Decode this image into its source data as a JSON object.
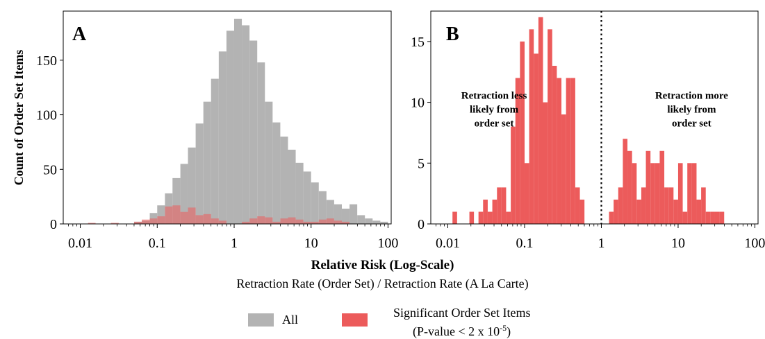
{
  "chart_data": [
    {
      "panel": "A",
      "type": "histogram",
      "ylabel": "Count of Order Set Items",
      "x_scale": "log",
      "xlim": [
        0.006,
        110
      ],
      "ylim": [
        0,
        195
      ],
      "x_ticks": [
        0.01,
        0.1,
        1,
        10,
        100
      ],
      "x_tick_labels": [
        "0.01",
        "0.1",
        "1",
        "10",
        "100"
      ],
      "y_ticks": [
        0,
        50,
        100,
        150
      ],
      "y_tick_labels": [
        "0",
        "50",
        "100",
        "150"
      ],
      "series": [
        {
          "name": "All",
          "color": "#b3b3b3",
          "bins": [
            [
              0.05,
              0.063,
              2
            ],
            [
              0.063,
              0.08,
              3
            ],
            [
              0.08,
              0.1,
              10
            ],
            [
              0.1,
              0.126,
              17
            ],
            [
              0.126,
              0.158,
              28
            ],
            [
              0.158,
              0.2,
              42
            ],
            [
              0.2,
              0.251,
              55
            ],
            [
              0.251,
              0.316,
              70
            ],
            [
              0.316,
              0.398,
              92
            ],
            [
              0.398,
              0.501,
              112
            ],
            [
              0.501,
              0.631,
              133
            ],
            [
              0.631,
              0.794,
              158
            ],
            [
              0.794,
              1.0,
              177
            ],
            [
              1.0,
              1.259,
              188
            ],
            [
              1.259,
              1.585,
              182
            ],
            [
              1.585,
              1.995,
              168
            ],
            [
              1.995,
              2.512,
              148
            ],
            [
              2.512,
              3.162,
              112
            ],
            [
              3.162,
              3.981,
              93
            ],
            [
              3.981,
              5.012,
              80
            ],
            [
              5.012,
              6.31,
              68
            ],
            [
              6.31,
              7.943,
              56
            ],
            [
              7.943,
              10.0,
              48
            ],
            [
              10.0,
              12.59,
              38
            ],
            [
              12.59,
              15.85,
              30
            ],
            [
              15.85,
              19.95,
              22
            ],
            [
              19.95,
              25.12,
              18
            ],
            [
              25.12,
              31.62,
              14
            ],
            [
              31.62,
              39.81,
              18
            ],
            [
              39.81,
              50.12,
              8
            ],
            [
              50.12,
              63.1,
              5
            ],
            [
              63.1,
              79.43,
              3
            ],
            [
              79.43,
              100.0,
              2
            ]
          ]
        },
        {
          "name": "Significant Order Set Items",
          "color": "#ec5b5b",
          "bins": [
            [
              0.0126,
              0.0158,
              1
            ],
            [
              0.025,
              0.0316,
              1
            ],
            [
              0.05,
              0.063,
              2
            ],
            [
              0.063,
              0.08,
              4
            ],
            [
              0.08,
              0.1,
              5
            ],
            [
              0.1,
              0.126,
              7
            ],
            [
              0.126,
              0.158,
              16
            ],
            [
              0.158,
              0.2,
              17
            ],
            [
              0.2,
              0.251,
              11
            ],
            [
              0.251,
              0.316,
              15
            ],
            [
              0.316,
              0.398,
              8
            ],
            [
              0.398,
              0.501,
              9
            ],
            [
              0.501,
              0.631,
              5
            ],
            [
              0.631,
              0.794,
              3
            ],
            [
              1.259,
              1.585,
              2
            ],
            [
              1.585,
              1.995,
              5
            ],
            [
              1.995,
              2.512,
              7
            ],
            [
              2.512,
              3.162,
              6
            ],
            [
              3.162,
              3.981,
              2
            ],
            [
              3.981,
              5.012,
              5
            ],
            [
              5.012,
              6.31,
              6
            ],
            [
              6.31,
              7.943,
              4
            ],
            [
              7.943,
              10.0,
              2
            ],
            [
              10.0,
              12.59,
              2
            ],
            [
              12.59,
              15.85,
              4
            ],
            [
              15.85,
              19.95,
              5
            ],
            [
              19.95,
              25.12,
              3
            ],
            [
              25.12,
              31.62,
              2
            ]
          ]
        }
      ]
    },
    {
      "panel": "B",
      "type": "histogram",
      "x_scale": "log",
      "xlim": [
        0.006,
        110
      ],
      "ylim": [
        0,
        17.5
      ],
      "x_ticks": [
        0.01,
        0.1,
        1,
        10,
        100
      ],
      "x_tick_labels": [
        "0.01",
        "0.1",
        "1",
        "10",
        "100"
      ],
      "y_ticks": [
        0,
        5,
        10,
        15
      ],
      "y_tick_labels": [
        "0",
        "5",
        "10",
        "15"
      ],
      "reference_line": {
        "x": 1,
        "style": "dotted"
      },
      "annotations": [
        {
          "text_lines": [
            "Retraction less",
            "likely from",
            "order set"
          ],
          "anchor_x": 0.04,
          "anchor_y": 10.3
        },
        {
          "text_lines": [
            "Retraction more",
            "likely from",
            "order set"
          ],
          "anchor_x": 15,
          "anchor_y": 10.3
        }
      ],
      "series": [
        {
          "name": "Significant Order Set Items",
          "color": "#ec5b5b",
          "bins": [
            [
              0.0115,
              0.0132,
              1
            ],
            [
              0.0191,
              0.0219,
              1
            ],
            [
              0.0251,
              0.0288,
              1
            ],
            [
              0.0288,
              0.0331,
              2
            ],
            [
              0.0331,
              0.038,
              1
            ],
            [
              0.038,
              0.0437,
              2
            ],
            [
              0.0437,
              0.0501,
              3
            ],
            [
              0.0501,
              0.0575,
              3
            ],
            [
              0.0575,
              0.0661,
              1
            ],
            [
              0.0661,
              0.0759,
              8
            ],
            [
              0.0759,
              0.0871,
              12
            ],
            [
              0.0871,
              0.1,
              15
            ],
            [
              0.1,
              0.1148,
              5
            ],
            [
              0.1148,
              0.1318,
              16
            ],
            [
              0.1318,
              0.1514,
              14
            ],
            [
              0.1514,
              0.1738,
              17
            ],
            [
              0.1738,
              0.1995,
              10
            ],
            [
              0.1995,
              0.2291,
              16
            ],
            [
              0.2291,
              0.263,
              13
            ],
            [
              0.263,
              0.302,
              12
            ],
            [
              0.302,
              0.3467,
              9
            ],
            [
              0.3467,
              0.3981,
              12
            ],
            [
              0.3981,
              0.4571,
              12
            ],
            [
              0.4571,
              0.5248,
              3
            ],
            [
              0.5248,
              0.6026,
              2
            ],
            [
              1.2589,
              1.4454,
              1
            ],
            [
              1.4454,
              1.6596,
              2
            ],
            [
              1.6596,
              1.9055,
              3
            ],
            [
              1.9055,
              2.1878,
              7
            ],
            [
              2.1878,
              2.5119,
              6
            ],
            [
              2.5119,
              2.884,
              5
            ],
            [
              2.884,
              3.3113,
              2
            ],
            [
              3.3113,
              3.8019,
              3
            ],
            [
              3.8019,
              4.3652,
              6
            ],
            [
              4.3652,
              5.0119,
              5
            ],
            [
              5.0119,
              5.7544,
              5
            ],
            [
              5.7544,
              6.6069,
              6
            ],
            [
              6.6069,
              7.5858,
              3
            ],
            [
              7.5858,
              8.7096,
              3
            ],
            [
              8.7096,
              10.0,
              2
            ],
            [
              10.0,
              11.482,
              5
            ],
            [
              11.482,
              13.183,
              1
            ],
            [
              13.183,
              15.136,
              5
            ],
            [
              15.136,
              17.378,
              5
            ],
            [
              17.378,
              19.953,
              2
            ],
            [
              19.953,
              22.909,
              3
            ],
            [
              22.909,
              26.303,
              1
            ],
            [
              26.303,
              30.2,
              1
            ],
            [
              30.2,
              34.674,
              1
            ],
            [
              34.674,
              39.811,
              1
            ]
          ]
        }
      ]
    }
  ],
  "panel_letters": [
    "A",
    "B"
  ],
  "xlabel": "Relative Risk (Log-Scale)",
  "xlabel_sub": "Retraction Rate (Order Set) / Retraction Rate (A La Carte)",
  "legend": {
    "all_label": "All",
    "sig_label_line1": "Significant Order Set Items",
    "sig_label_line2": "(P-value <  2 x 10",
    "sig_label_exp": "-5",
    "sig_label_end": ")",
    "all_color": "#b3b3b3",
    "sig_color": "#ec5b5b"
  }
}
